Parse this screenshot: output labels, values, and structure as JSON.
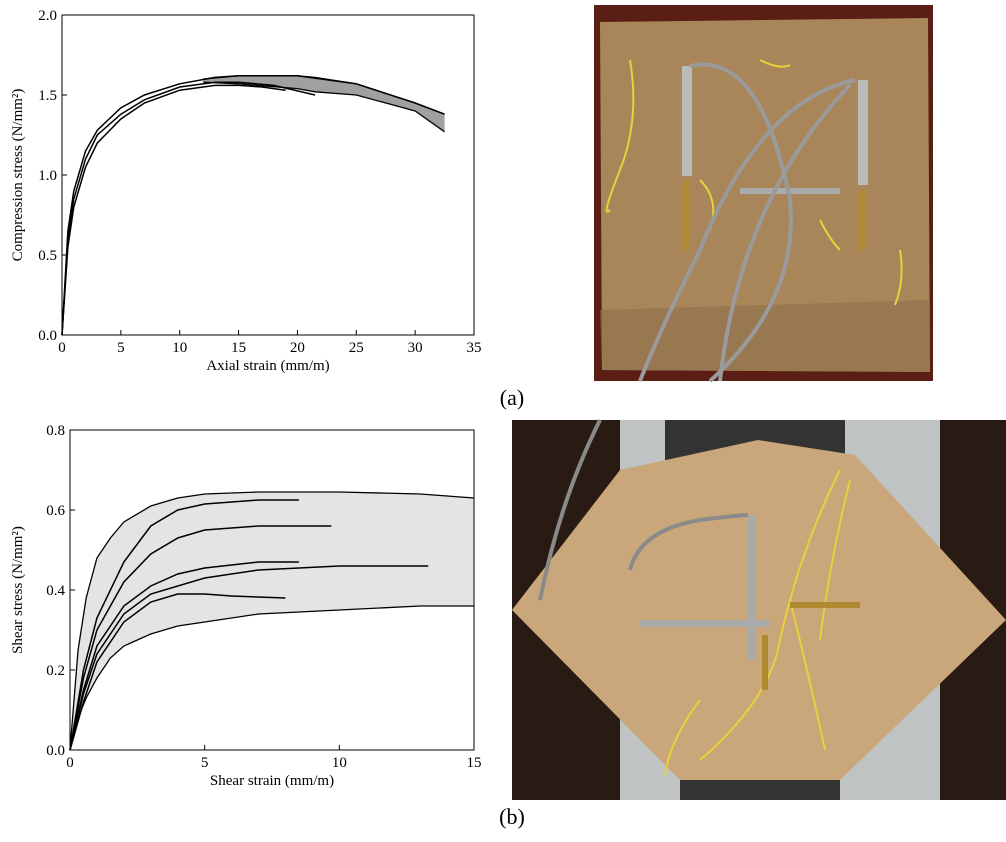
{
  "chart_data": [
    {
      "type": "line",
      "xlabel": "Axial strain (mm/m)",
      "ylabel": "Compression stress (N/mm²)",
      "xlim": [
        0,
        35
      ],
      "xticks": [
        0,
        5,
        10,
        15,
        20,
        25,
        30,
        35
      ],
      "ylim": [
        0,
        2
      ],
      "yticks": [
        {
          "value": 0,
          "label": "0.0"
        },
        0.5,
        {
          "value": 1,
          "label": "1.0"
        },
        1.5,
        {
          "value": 2,
          "label": "2.0"
        }
      ],
      "band": {
        "color": "#a0a0a0",
        "x": [
          12,
          15,
          20,
          21.5,
          25,
          30,
          32.5
        ],
        "upper": [
          1.6,
          1.62,
          1.62,
          1.61,
          1.57,
          1.45,
          1.38
        ],
        "lower": [
          1.58,
          1.57,
          1.54,
          1.52,
          1.5,
          1.4,
          1.27
        ]
      },
      "series": [
        {
          "color": "#000000",
          "x": [
            0,
            0.5,
            1,
            2,
            3,
            5,
            7,
            10,
            13,
            15,
            17,
            19
          ],
          "values": [
            0,
            0.55,
            0.8,
            1.05,
            1.2,
            1.35,
            1.45,
            1.53,
            1.56,
            1.56,
            1.55,
            1.53
          ]
        },
        {
          "color": "#000000",
          "x": [
            0,
            0.5,
            1,
            2,
            3,
            5,
            7,
            10,
            13,
            15,
            18,
            21.5
          ],
          "values": [
            0,
            0.6,
            0.85,
            1.1,
            1.25,
            1.38,
            1.47,
            1.55,
            1.58,
            1.58,
            1.56,
            1.5
          ]
        },
        {
          "color": "#000000",
          "x": [
            0,
            0.5,
            1,
            2,
            3,
            5,
            7,
            10,
            13,
            15,
            20,
            25,
            30,
            32.5
          ],
          "values": [
            0,
            0.65,
            0.9,
            1.15,
            1.28,
            1.42,
            1.5,
            1.57,
            1.61,
            1.62,
            1.62,
            1.57,
            1.45,
            1.38
          ]
        }
      ]
    },
    {
      "type": "line",
      "xlabel": "Shear strain (mm/m)",
      "ylabel": "Shear stress (N/mm²)",
      "xlim": [
        0,
        15
      ],
      "xticks": [
        0,
        5,
        10,
        15
      ],
      "ylim": [
        0,
        0.8
      ],
      "yticks": [
        {
          "value": 0,
          "label": "0.0"
        },
        0.2,
        0.4,
        0.6,
        0.8
      ],
      "band": {
        "color": "#e4e4e4",
        "x": [
          0,
          0.3,
          0.6,
          1,
          1.5,
          2,
          3,
          4,
          5,
          7,
          10,
          13,
          15
        ],
        "upper": [
          0,
          0.25,
          0.38,
          0.48,
          0.53,
          0.57,
          0.61,
          0.63,
          0.64,
          0.645,
          0.645,
          0.64,
          0.63
        ],
        "lower": [
          0,
          0.08,
          0.13,
          0.18,
          0.23,
          0.26,
          0.29,
          0.31,
          0.32,
          0.34,
          0.35,
          0.36,
          0.36
        ]
      },
      "series": [
        {
          "color": "#000000",
          "x": [
            0,
            0.5,
            1,
            2,
            3,
            4,
            5,
            7,
            8.5
          ],
          "values": [
            0,
            0.2,
            0.33,
            0.47,
            0.56,
            0.6,
            0.615,
            0.625,
            0.625
          ]
        },
        {
          "color": "#000000",
          "x": [
            0,
            0.5,
            1,
            2,
            3,
            4,
            5,
            7,
            9.7
          ],
          "values": [
            0,
            0.18,
            0.3,
            0.42,
            0.49,
            0.53,
            0.55,
            0.56,
            0.56
          ]
        },
        {
          "color": "#000000",
          "x": [
            0,
            0.5,
            1,
            2,
            3,
            4,
            5,
            7,
            8.5
          ],
          "values": [
            0,
            0.15,
            0.26,
            0.36,
            0.41,
            0.44,
            0.455,
            0.47,
            0.47
          ]
        },
        {
          "color": "#000000",
          "x": [
            0,
            0.5,
            1,
            2,
            3,
            5,
            7,
            10,
            13.3
          ],
          "values": [
            0,
            0.14,
            0.24,
            0.34,
            0.39,
            0.43,
            0.45,
            0.46,
            0.46
          ]
        },
        {
          "color": "#000000",
          "x": [
            0,
            0.5,
            1,
            2,
            3,
            4,
            5,
            6,
            8
          ],
          "values": [
            0,
            0.12,
            0.22,
            0.32,
            0.37,
            0.39,
            0.39,
            0.385,
            0.38
          ]
        }
      ]
    }
  ],
  "panel_labels": [
    "(a)",
    "(b)"
  ]
}
